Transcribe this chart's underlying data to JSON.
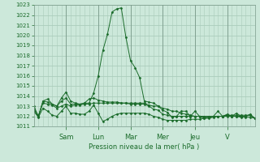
{
  "xlabel": "Pression niveau de la mer( hPa )",
  "ylim": [
    1011,
    1023
  ],
  "yticks": [
    1011,
    1012,
    1013,
    1014,
    1015,
    1016,
    1017,
    1018,
    1019,
    1020,
    1021,
    1022,
    1023
  ],
  "bg_color": "#cce8da",
  "grid_color": "#aaccbb",
  "line_color": "#1a6b2a",
  "x_day_labels": [
    "Sam",
    "Lun",
    "Mar",
    "Mer",
    "Jeu",
    "V"
  ],
  "x_day_positions": [
    7,
    14,
    21,
    28,
    35,
    42
  ],
  "n_points": 49,
  "series": [
    [
      1012.5,
      1012.0,
      1013.5,
      1013.7,
      1013.2,
      1013.0,
      1013.8,
      1014.4,
      1013.5,
      1013.3,
      1013.2,
      1013.3,
      1013.3,
      1014.3,
      1016.0,
      1018.5,
      1020.1,
      1022.3,
      1022.6,
      1022.7,
      1019.8,
      1017.5,
      1016.8,
      1015.8,
      1013.5,
      1013.4,
      1013.3,
      1013.0,
      1012.6,
      1012.4,
      1011.9,
      1012.0,
      1012.5,
      1012.5,
      1012.0,
      1012.5,
      1012.0,
      1011.8,
      1011.9,
      1012.0,
      1012.5,
      1012.0,
      1012.2,
      1012.0,
      1012.3,
      1012.0,
      1012.0,
      1012.2,
      1011.8
    ],
    [
      1013.0,
      1012.0,
      1013.3,
      1013.2,
      1013.1,
      1012.8,
      1013.0,
      1013.2,
      1013.0,
      1013.1,
      1013.1,
      1013.2,
      1013.2,
      1013.3,
      1013.3,
      1013.3,
      1013.3,
      1013.3,
      1013.3,
      1013.3,
      1013.3,
      1013.3,
      1013.3,
      1013.3,
      1013.3,
      1013.1,
      1013.0,
      1013.0,
      1012.8,
      1012.7,
      1012.5,
      1012.5,
      1012.3,
      1012.2,
      1012.1,
      1012.0,
      1012.0,
      1012.0,
      1012.0,
      1012.0,
      1012.0,
      1012.0,
      1012.0,
      1012.0,
      1012.0,
      1011.9,
      1011.9,
      1011.9,
      1011.8
    ],
    [
      1012.8,
      1012.0,
      1013.5,
      1013.4,
      1013.2,
      1013.0,
      1013.5,
      1013.8,
      1013.2,
      1013.2,
      1013.2,
      1013.3,
      1013.7,
      1013.8,
      1013.6,
      1013.5,
      1013.4,
      1013.4,
      1013.4,
      1013.3,
      1013.3,
      1013.2,
      1013.2,
      1013.2,
      1013.2,
      1013.0,
      1012.7,
      1012.6,
      1012.2,
      1012.1,
      1012.0,
      1012.0,
      1012.0,
      1012.0,
      1012.0,
      1012.0,
      1012.0,
      1011.9,
      1011.9,
      1012.0,
      1012.0,
      1012.0,
      1012.1,
      1012.0,
      1012.0,
      1012.0,
      1012.0,
      1012.1,
      1011.8
    ],
    [
      1012.5,
      1011.9,
      1012.8,
      1012.5,
      1012.1,
      1012.0,
      1012.5,
      1013.0,
      1012.3,
      1012.3,
      1012.2,
      1012.2,
      1012.5,
      1013.1,
      1012.3,
      1011.5,
      1011.7,
      1012.0,
      1012.2,
      1012.3,
      1012.3,
      1012.3,
      1012.3,
      1012.3,
      1012.3,
      1012.2,
      1012.0,
      1011.9,
      1011.7,
      1011.6,
      1011.6,
      1011.6,
      1011.6,
      1011.6,
      1011.7,
      1011.7,
      1011.7,
      1011.8,
      1011.8,
      1011.9,
      1012.0,
      1012.0,
      1012.1,
      1012.1,
      1012.1,
      1012.1,
      1012.1,
      1012.1,
      1011.8
    ]
  ]
}
